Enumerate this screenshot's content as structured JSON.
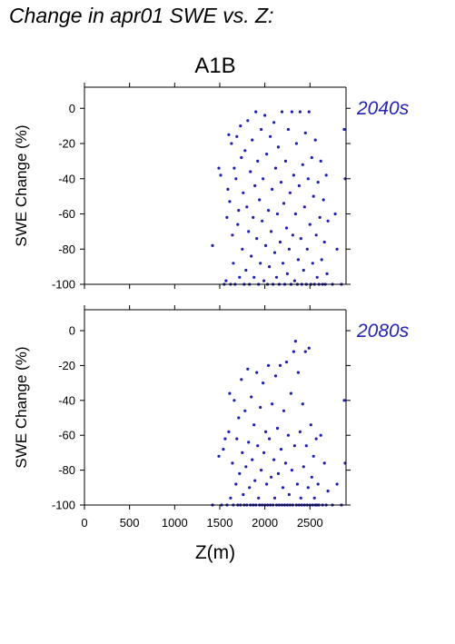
{
  "figure": {
    "title": "Change in apr01 SWE vs. Z:",
    "scenario": "A1B",
    "accent_color": "#2323b4",
    "point_color": "#1f1fb0"
  },
  "chart_data": [
    {
      "type": "scatter",
      "period_label": "2040s",
      "ylabel": "SWE Change (%)",
      "xlabel": "",
      "xlim": [
        0,
        2900
      ],
      "ylim": [
        -100,
        12
      ],
      "yticks": [
        0,
        -20,
        -40,
        -60,
        -80,
        -100
      ],
      "xticks": [
        0,
        500,
        1000,
        1500,
        2000,
        2500
      ],
      "show_x_tick_labels": false,
      "grid": false,
      "series": [
        {
          "values_description": "",
          "points": [
            [
              1420,
              -78
            ],
            [
              1490,
              -34
            ],
            [
              1510,
              -38
            ],
            [
              1550,
              -100
            ],
            [
              1570,
              -98
            ],
            [
              1580,
              -62
            ],
            [
              1590,
              -46
            ],
            [
              1600,
              -15
            ],
            [
              1610,
              -53
            ],
            [
              1620,
              -100
            ],
            [
              1630,
              -20
            ],
            [
              1640,
              -72
            ],
            [
              1650,
              -88
            ],
            [
              1660,
              -34
            ],
            [
              1670,
              -100
            ],
            [
              1680,
              -40
            ],
            [
              1690,
              -16
            ],
            [
              1700,
              -66
            ],
            [
              1710,
              -58
            ],
            [
              1720,
              -96
            ],
            [
              1730,
              -10
            ],
            [
              1740,
              -28
            ],
            [
              1750,
              -80
            ],
            [
              1760,
              -48
            ],
            [
              1770,
              -100
            ],
            [
              1780,
              -24
            ],
            [
              1790,
              -92
            ],
            [
              1800,
              -56
            ],
            [
              1810,
              -7
            ],
            [
              1820,
              -70
            ],
            [
              1830,
              -100
            ],
            [
              1840,
              -36
            ],
            [
              1850,
              -84
            ],
            [
              1860,
              -18
            ],
            [
              1870,
              -62
            ],
            [
              1880,
              -96
            ],
            [
              1890,
              -44
            ],
            [
              1900,
              -2
            ],
            [
              1910,
              -74
            ],
            [
              1920,
              -30
            ],
            [
              1930,
              -100
            ],
            [
              1940,
              -52
            ],
            [
              1950,
              -88
            ],
            [
              1960,
              -12
            ],
            [
              1970,
              -64
            ],
            [
              1980,
              -40
            ],
            [
              1990,
              -98
            ],
            [
              2000,
              -4
            ],
            [
              2010,
              -78
            ],
            [
              2020,
              -26
            ],
            [
              2030,
              -100
            ],
            [
              2040,
              -58
            ],
            [
              2050,
              -90
            ],
            [
              2060,
              -16
            ],
            [
              2070,
              -70
            ],
            [
              2080,
              -46
            ],
            [
              2090,
              -100
            ],
            [
              2100,
              -8
            ],
            [
              2110,
              -82
            ],
            [
              2120,
              -34
            ],
            [
              2130,
              -96
            ],
            [
              2140,
              -60
            ],
            [
              2150,
              -22
            ],
            [
              2160,
              -100
            ],
            [
              2170,
              -76
            ],
            [
              2180,
              -42
            ],
            [
              2190,
              -2
            ],
            [
              2200,
              -88
            ],
            [
              2210,
              -54
            ],
            [
              2220,
              -100
            ],
            [
              2230,
              -30
            ],
            [
              2240,
              -68
            ],
            [
              2250,
              -94
            ],
            [
              2260,
              -12
            ],
            [
              2270,
              -80
            ],
            [
              2280,
              -48
            ],
            [
              2290,
              -100
            ],
            [
              2300,
              -2
            ],
            [
              2310,
              -72
            ],
            [
              2320,
              -38
            ],
            [
              2330,
              -98
            ],
            [
              2340,
              -60
            ],
            [
              2350,
              -20
            ],
            [
              2360,
              -100
            ],
            [
              2370,
              -86
            ],
            [
              2380,
              -44
            ],
            [
              2390,
              -2
            ],
            [
              2400,
              -74
            ],
            [
              2410,
              -100
            ],
            [
              2420,
              -32
            ],
            [
              2430,
              -92
            ],
            [
              2440,
              -56
            ],
            [
              2450,
              -14
            ],
            [
              2460,
              -100
            ],
            [
              2470,
              -80
            ],
            [
              2480,
              -40
            ],
            [
              2490,
              -2
            ],
            [
              2500,
              -66
            ],
            [
              2510,
              -100
            ],
            [
              2520,
              -28
            ],
            [
              2530,
              -88
            ],
            [
              2540,
              -50
            ],
            [
              2550,
              -100
            ],
            [
              2560,
              -18
            ],
            [
              2570,
              -72
            ],
            [
              2580,
              -96
            ],
            [
              2590,
              -42
            ],
            [
              2600,
              -100
            ],
            [
              2610,
              -62
            ],
            [
              2620,
              -30
            ],
            [
              2630,
              -86
            ],
            [
              2640,
              -100
            ],
            [
              2650,
              -52
            ],
            [
              2660,
              -76
            ],
            [
              2670,
              -100
            ],
            [
              2680,
              -38
            ],
            [
              2690,
              -94
            ],
            [
              2700,
              -64
            ],
            [
              2750,
              -100
            ],
            [
              2780,
              -60
            ],
            [
              2800,
              -80
            ],
            [
              2850,
              -100
            ],
            [
              2880,
              -12
            ],
            [
              2890,
              -40
            ]
          ]
        }
      ]
    },
    {
      "type": "scatter",
      "period_label": "2080s",
      "ylabel": "SWE Change (%)",
      "xlabel": "Z(m)",
      "xlim": [
        0,
        2900
      ],
      "ylim": [
        -100,
        12
      ],
      "yticks": [
        0,
        -20,
        -40,
        -60,
        -80,
        -100
      ],
      "xticks": [
        0,
        500,
        1000,
        1500,
        2000,
        2500
      ],
      "show_x_tick_labels": true,
      "grid": false,
      "series": [
        {
          "points": [
            [
              1420,
              -100
            ],
            [
              1490,
              -72
            ],
            [
              1520,
              -100
            ],
            [
              1540,
              -68
            ],
            [
              1560,
              -62
            ],
            [
              1580,
              -100
            ],
            [
              1600,
              -58
            ],
            [
              1610,
              -36
            ],
            [
              1620,
              -96
            ],
            [
              1640,
              -76
            ],
            [
              1650,
              -100
            ],
            [
              1660,
              -40
            ],
            [
              1680,
              -88
            ],
            [
              1690,
              -62
            ],
            [
              1700,
              -100
            ],
            [
              1710,
              -50
            ],
            [
              1720,
              -82
            ],
            [
              1730,
              -100
            ],
            [
              1740,
              -28
            ],
            [
              1750,
              -70
            ],
            [
              1760,
              -94
            ],
            [
              1770,
              -100
            ],
            [
              1780,
              -46
            ],
            [
              1790,
              -78
            ],
            [
              1800,
              -100
            ],
            [
              1810,
              -22
            ],
            [
              1820,
              -64
            ],
            [
              1830,
              -90
            ],
            [
              1840,
              -100
            ],
            [
              1850,
              -38
            ],
            [
              1860,
              -74
            ],
            [
              1870,
              -100
            ],
            [
              1880,
              -54
            ],
            [
              1890,
              -86
            ],
            [
              1900,
              -100
            ],
            [
              1910,
              -24
            ],
            [
              1920,
              -66
            ],
            [
              1930,
              -96
            ],
            [
              1940,
              -100
            ],
            [
              1950,
              -44
            ],
            [
              1960,
              -80
            ],
            [
              1970,
              -100
            ],
            [
              1980,
              -30
            ],
            [
              1990,
              -70
            ],
            [
              2000,
              -100
            ],
            [
              2010,
              -58
            ],
            [
              2020,
              -88
            ],
            [
              2030,
              -100
            ],
            [
              2040,
              -20
            ],
            [
              2050,
              -62
            ],
            [
              2060,
              -100
            ],
            [
              2070,
              -84
            ],
            [
              2080,
              -42
            ],
            [
              2090,
              -100
            ],
            [
              2100,
              -74
            ],
            [
              2110,
              -96
            ],
            [
              2120,
              -26
            ],
            [
              2130,
              -100
            ],
            [
              2140,
              -56
            ],
            [
              2150,
              -82
            ],
            [
              2160,
              -100
            ],
            [
              2170,
              -20
            ],
            [
              2180,
              -68
            ],
            [
              2190,
              -100
            ],
            [
              2200,
              -90
            ],
            [
              2210,
              -46
            ],
            [
              2220,
              -100
            ],
            [
              2230,
              -76
            ],
            [
              2240,
              -18
            ],
            [
              2250,
              -100
            ],
            [
              2260,
              -60
            ],
            [
              2270,
              -94
            ],
            [
              2280,
              -100
            ],
            [
              2290,
              -36
            ],
            [
              2300,
              -80
            ],
            [
              2310,
              -100
            ],
            [
              2320,
              -12
            ],
            [
              2330,
              -66
            ],
            [
              2340,
              -6
            ],
            [
              2350,
              -100
            ],
            [
              2360,
              -88
            ],
            [
              2370,
              -24
            ],
            [
              2380,
              -100
            ],
            [
              2390,
              -58
            ],
            [
              2400,
              -96
            ],
            [
              2410,
              -100
            ],
            [
              2420,
              -42
            ],
            [
              2430,
              -78
            ],
            [
              2440,
              -100
            ],
            [
              2450,
              -12
            ],
            [
              2460,
              -66
            ],
            [
              2470,
              -100
            ],
            [
              2480,
              -90
            ],
            [
              2490,
              -10
            ],
            [
              2500,
              -100
            ],
            [
              2510,
              -54
            ],
            [
              2520,
              -84
            ],
            [
              2530,
              -100
            ],
            [
              2540,
              -72
            ],
            [
              2550,
              -96
            ],
            [
              2560,
              -100
            ],
            [
              2570,
              -62
            ],
            [
              2580,
              -100
            ],
            [
              2590,
              -88
            ],
            [
              2600,
              -100
            ],
            [
              2620,
              -60
            ],
            [
              2640,
              -100
            ],
            [
              2660,
              -76
            ],
            [
              2680,
              -100
            ],
            [
              2700,
              -92
            ],
            [
              2750,
              -100
            ],
            [
              2800,
              -88
            ],
            [
              2850,
              -100
            ],
            [
              2880,
              -40
            ],
            [
              2890,
              -76
            ]
          ]
        }
      ]
    }
  ]
}
